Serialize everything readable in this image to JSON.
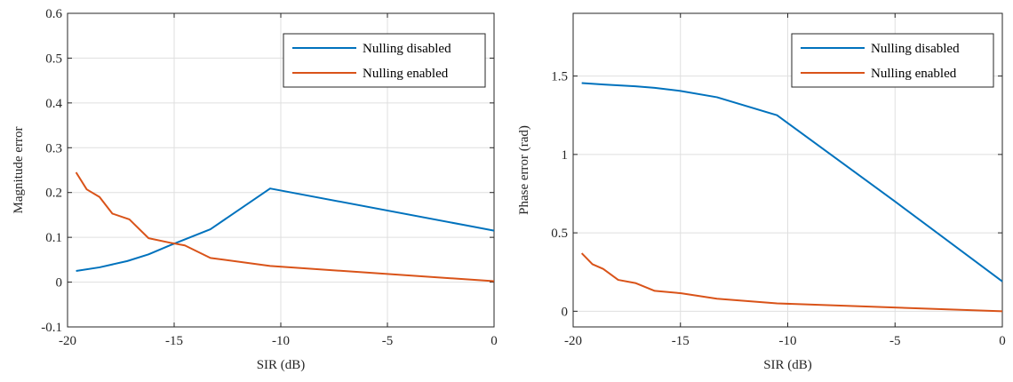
{
  "chart_data": [
    {
      "type": "line",
      "xlabel": "SIR (dB)",
      "ylabel": "Magnitude error",
      "xlim": [
        -20,
        0
      ],
      "ylim": [
        -0.1,
        0.6
      ],
      "xticks": [
        -20,
        -15,
        -10,
        -5,
        0
      ],
      "xtick_labels": [
        "-20",
        "-15",
        "-10",
        "-5",
        "0"
      ],
      "yticks": [
        -0.1,
        0,
        0.1,
        0.2,
        0.3,
        0.4,
        0.5,
        0.6
      ],
      "ytick_labels": [
        "-0.1",
        "0",
        "0.1",
        "0.2",
        "0.3",
        "0.4",
        "0.5",
        "0.6"
      ],
      "grid": true,
      "legend": "top-right",
      "series": [
        {
          "name": "Nulling disabled",
          "color": "#0072BD",
          "x": [
            -19.6,
            -18.5,
            -17.2,
            -16.2,
            -15.2,
            -13.3,
            -10.5,
            0
          ],
          "y": [
            0.025,
            0.033,
            0.047,
            0.062,
            0.082,
            0.118,
            0.209,
            0.115
          ]
        },
        {
          "name": "Nulling enabled",
          "color": "#D95319",
          "x": [
            -19.6,
            -19.1,
            -18.5,
            -17.9,
            -17.1,
            -16.2,
            -15.2,
            -14.5,
            -13.3,
            -10.5,
            0
          ],
          "y": [
            0.245,
            0.207,
            0.19,
            0.153,
            0.14,
            0.098,
            0.088,
            0.082,
            0.054,
            0.036,
            0.002
          ]
        }
      ]
    },
    {
      "type": "line",
      "xlabel": "SIR (dB)",
      "ylabel": "Phase error (rad)",
      "xlim": [
        -20,
        0
      ],
      "ylim": [
        -0.1,
        1.9
      ],
      "xticks": [
        -20,
        -15,
        -10,
        -5,
        0
      ],
      "xtick_labels": [
        "-20",
        "-15",
        "-10",
        "-5",
        "0"
      ],
      "yticks": [
        0,
        0.5,
        1,
        1.5
      ],
      "ytick_labels": [
        "0",
        "0.5",
        "1",
        "1.5"
      ],
      "grid": true,
      "legend": "top-right",
      "series": [
        {
          "name": "Nulling disabled",
          "color": "#0072BD",
          "x": [
            -19.6,
            -18.5,
            -17.1,
            -16.2,
            -15.0,
            -13.3,
            -10.5,
            -5,
            0
          ],
          "y": [
            1.455,
            1.445,
            1.435,
            1.425,
            1.405,
            1.365,
            1.25,
            0.7,
            0.19
          ]
        },
        {
          "name": "Nulling enabled",
          "color": "#D95319",
          "x": [
            -19.6,
            -19.1,
            -18.6,
            -17.9,
            -17.1,
            -16.2,
            -15.0,
            -13.3,
            -10.5,
            0
          ],
          "y": [
            0.37,
            0.3,
            0.27,
            0.2,
            0.18,
            0.13,
            0.115,
            0.08,
            0.05,
            0.0
          ]
        }
      ]
    }
  ]
}
